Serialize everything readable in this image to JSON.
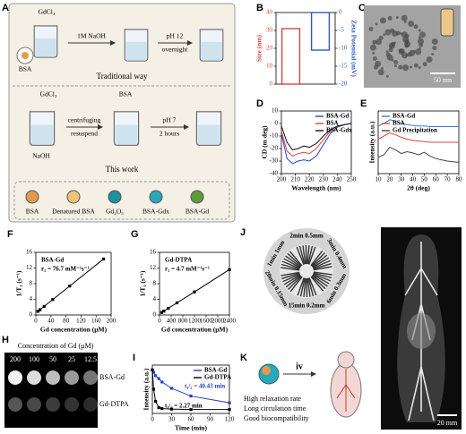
{
  "chart_data": [
    {
      "type": "bar",
      "panel": "B",
      "categories": [
        null,
        null
      ],
      "ylabel": "Size (nm)",
      "y2label": "Zeta Potential (mV)",
      "series": [
        {
          "color": "#d9443f",
          "values": [
            31,
            null
          ]
        },
        {
          "color": "#3356c4",
          "values": [
            null,
            -10.5
          ],
          "axis": "y2"
        }
      ],
      "ylim": [
        0,
        40
      ],
      "yticks": [
        0,
        10,
        20,
        30,
        40
      ],
      "y2lim": [
        -20,
        0
      ],
      "y2ticks": [
        0,
        -5,
        -10,
        -15,
        -20
      ]
    },
    {
      "type": "line",
      "panel": "D",
      "xlabel": "Wavelength (nm)",
      "ylabel": "CD (m deg)",
      "x": [
        200,
        204,
        208,
        212,
        216,
        220,
        225,
        230,
        235,
        240,
        245,
        250
      ],
      "xlim": [
        200,
        250
      ],
      "xticks": [
        200,
        210,
        220,
        230,
        240,
        250
      ],
      "ylim": [
        -40,
        10
      ],
      "yticks": [
        -40,
        -30,
        -20,
        -10,
        0,
        10
      ],
      "legend": "upper right",
      "series": [
        {
          "name": "BSA-Gd",
          "color": "#2340c8",
          "values": [
            -8,
            -28,
            -32,
            -30,
            -29,
            -30,
            -26,
            -17,
            -8,
            -3,
            -1,
            0
          ]
        },
        {
          "name": "BSA",
          "color": "#d9443f",
          "values": [
            -6,
            -22,
            -26,
            -24,
            -23,
            -24,
            -20,
            -13,
            -6,
            -2,
            -1,
            0
          ]
        },
        {
          "name": "BSA-Gdx",
          "color": "#111111",
          "values": [
            -2,
            -15,
            -21,
            -20,
            -18,
            -19,
            -16,
            -10,
            -5,
            -2,
            -1,
            0
          ]
        }
      ]
    },
    {
      "type": "line",
      "panel": "E",
      "xlabel": "2θ (deg)",
      "ylabel": "Intensity (a.u.)",
      "x": [
        10,
        15,
        20,
        25,
        30,
        35,
        40,
        45,
        50,
        55,
        60,
        65,
        70,
        75,
        80
      ],
      "xlim": [
        10,
        80
      ],
      "xticks": [
        10,
        20,
        30,
        40,
        50,
        60,
        70,
        80
      ],
      "ylim": [
        0,
        10
      ],
      "legend": "upper left",
      "series": [
        {
          "name": "BSA-Gd",
          "color": "#2f7fd9",
          "values": [
            7.6,
            8.0,
            8.6,
            8.4,
            8.0,
            7.8,
            7.7,
            7.6,
            7.6,
            7.5,
            7.5,
            7.5,
            7.5,
            7.5,
            7.5
          ]
        },
        {
          "name": "BSA",
          "color": "#d9443f",
          "values": [
            5.5,
            6.0,
            6.5,
            6.2,
            5.8,
            5.5,
            5.3,
            5.2,
            5.1,
            5.0,
            5.0,
            5.0,
            5.0,
            5.0,
            5.0
          ]
        },
        {
          "name": "Gd Precipitation",
          "color": "#444444",
          "values": [
            2.6,
            3.0,
            4.2,
            3.8,
            3.2,
            3.5,
            3.3,
            3.0,
            3.4,
            2.8,
            2.4,
            2.2,
            2.0,
            1.9,
            1.8
          ]
        }
      ]
    },
    {
      "type": "line",
      "markers": true,
      "panel": "F",
      "xlabel": "Gd concentration (μM)",
      "ylabel": "1/T₁ (s⁻¹)",
      "x": [
        5.6,
        11,
        22,
        45,
        90,
        180
      ],
      "xlim": [
        0,
        200
      ],
      "xticks": [
        0,
        40,
        80,
        120,
        160,
        200
      ],
      "ylim": [
        0,
        16
      ],
      "yticks": [
        0,
        4,
        8,
        12,
        16
      ],
      "series": [
        {
          "color": "#000000",
          "values": [
            0.93,
            1.34,
            2.19,
            3.95,
            7.4,
            14.3
          ]
        }
      ],
      "annotations": [
        {
          "text": "BSA-Gd",
          "color": "#000000"
        },
        {
          "text": "r₁ = 76.7 mM⁻¹s⁻¹",
          "color": "#000000"
        }
      ]
    },
    {
      "type": "line",
      "markers": true,
      "panel": "G",
      "xlabel": "Gd concentration (μM)",
      "ylabel": "1/T₁ (s⁻¹)",
      "x": [
        75,
        150,
        300,
        600,
        1200,
        2400
      ],
      "xlim": [
        0,
        2400
      ],
      "xticks": [
        0,
        400,
        800,
        1200,
        1600,
        2000,
        2400
      ],
      "ylim": [
        0,
        16
      ],
      "yticks": [
        0,
        4,
        8,
        12,
        16
      ],
      "series": [
        {
          "color": "#000000",
          "values": [
            0.65,
            1.0,
            1.7,
            3.1,
            5.9,
            11.6
          ]
        }
      ],
      "annotations": [
        {
          "text": "Gd-DTPA",
          "color": "#000000"
        },
        {
          "text": "r₁ = 4.7 mM⁻¹s⁻¹",
          "color": "#000000"
        }
      ]
    },
    {
      "type": "line",
      "markers": true,
      "panel": "I",
      "xlabel": "Time (min)",
      "ylabel": "Intensity (a.u.)",
      "x": [
        0,
        2,
        5,
        10,
        15,
        30,
        60,
        120
      ],
      "xlim": [
        0,
        120
      ],
      "xticks": [
        0,
        30,
        60,
        90,
        120
      ],
      "ylim": [
        0,
        10
      ],
      "legend": "upper right",
      "series": [
        {
          "name": "BSA-Gd",
          "color": "#2340c8",
          "values": [
            9,
            8.5,
            7.8,
            7.2,
            6.5,
            5.2,
            3.6,
            2.2
          ]
        },
        {
          "name": "Gd-DTPA",
          "color": "#000000",
          "values": [
            9,
            5,
            2.5,
            1.2,
            1,
            0.9,
            0.8,
            0.8
          ]
        }
      ],
      "annotations": [
        {
          "text": "t₁/₂ = 40.43 min",
          "color": "#2340c8"
        },
        {
          "text": "t₁/₂ = 2.27 min",
          "color": "#000000"
        }
      ]
    }
  ],
  "figure": {
    "letters": {
      "a": "A",
      "c": "C",
      "h": "H",
      "j": "J",
      "k": "K"
    },
    "a": {
      "gdcl3_top": "GdCl₃",
      "bsa_top": "BSA",
      "naoh_1m": "1M NaOH",
      "ph12": "pH 12",
      "overnight": "overnight",
      "traditional": "Traditional way",
      "gdcl3_bottom": "GdCl₃",
      "bsa_bottom": "BSA",
      "centrifuging": "centrifuging",
      "resuspend": "resuspend",
      "naoh": "NaOH",
      "ph7": "pH 7",
      "two_hours": "2 hours",
      "this_work": "This work",
      "legend": [
        "BSA",
        "Denatured BSA",
        "Gd₂O₃",
        "BSA-Gdx",
        "BSA-Gd"
      ]
    },
    "c": {
      "scale": "50 nm"
    },
    "h": {
      "title": "Concentration of Gd (μM)",
      "concentrations": [
        "200",
        "100",
        "50",
        "25",
        "12.5"
      ],
      "rows": [
        "BSA-Gd",
        "Gd-DTPA"
      ]
    },
    "j": {
      "labels": [
        "1min 1mm",
        "2min 0.5mm",
        "3min 0.4mm",
        "6min 0.3mm",
        "15min 0.2mm",
        "20min 0.15mm"
      ]
    },
    "k": {
      "route": "iv",
      "features": [
        "High relaxation rate",
        "Long circulation time",
        "Good biocompatibility"
      ]
    },
    "angiogram": {
      "scale": "20 mm"
    }
  }
}
